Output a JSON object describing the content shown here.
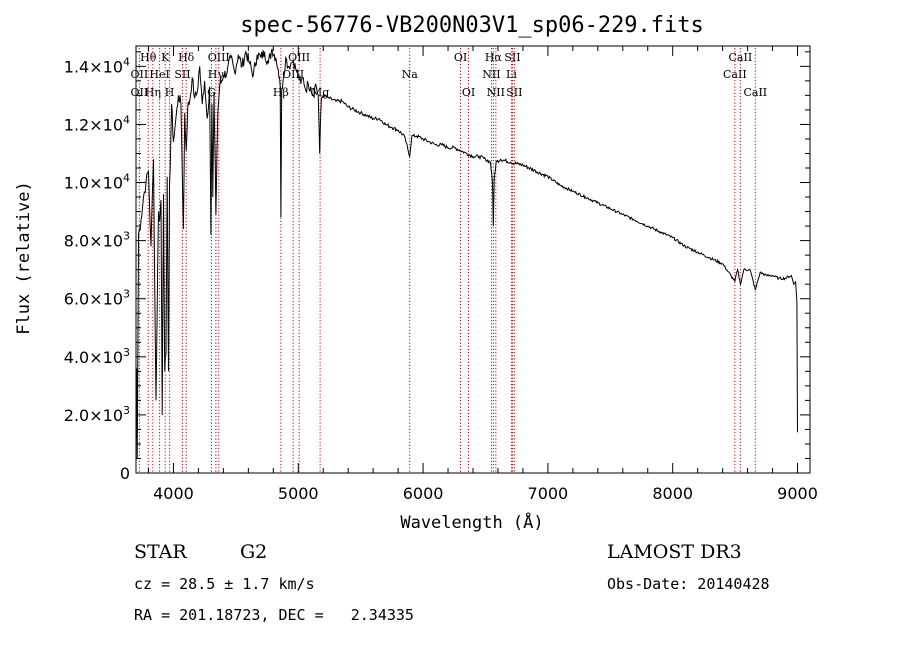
{
  "chart_data": {
    "type": "line",
    "title": "spec-56776-VB200N03V1_sp06-229.fits",
    "xlabel": "Wavelength (Å)",
    "ylabel": "Flux (relative)",
    "xlim": [
      3700,
      9100
    ],
    "ylim": [
      0,
      14700
    ],
    "x_ticks": [
      {
        "value": 4000,
        "label": "4000"
      },
      {
        "value": 5000,
        "label": "5000"
      },
      {
        "value": 6000,
        "label": "6000"
      },
      {
        "value": 7000,
        "label": "7000"
      },
      {
        "value": 8000,
        "label": "8000"
      },
      {
        "value": 9000,
        "label": "9000"
      }
    ],
    "y_ticks": [
      {
        "value": 0,
        "mant": "0",
        "exp": ""
      },
      {
        "value": 2000,
        "mant": "2.0×10",
        "exp": "3"
      },
      {
        "value": 4000,
        "mant": "4.0×10",
        "exp": "3"
      },
      {
        "value": 6000,
        "mant": "6.0×10",
        "exp": "3"
      },
      {
        "value": 8000,
        "mant": "8.0×10",
        "exp": "3"
      },
      {
        "value": 10000,
        "mant": "1.0×10",
        "exp": "4"
      },
      {
        "value": 12000,
        "mant": "1.2×10",
        "exp": "4"
      },
      {
        "value": 14000,
        "mant": "1.4×10",
        "exp": "4"
      }
    ],
    "series": [
      {
        "name": "flux",
        "color": "#000000",
        "x": [
          3700,
          3702,
          3706,
          3710,
          3720,
          3740,
          3760,
          3780,
          3800,
          3820,
          3840,
          3860,
          3880,
          3890,
          3900,
          3910,
          3920,
          3930,
          3940,
          3950,
          3960,
          3968,
          3975,
          3985,
          4000,
          4020,
          4040,
          4060,
          4080,
          4090,
          4102,
          4115,
          4130,
          4150,
          4170,
          4190,
          4210,
          4230,
          4250,
          4270,
          4290,
          4300,
          4308,
          4315,
          4325,
          4340,
          4355,
          4370,
          4400,
          4430,
          4460,
          4490,
          4520,
          4550,
          4580,
          4610,
          4640,
          4670,
          4700,
          4730,
          4760,
          4790,
          4820,
          4840,
          4855,
          4861,
          4867,
          4880,
          4900,
          4920,
          4940,
          4960,
          4980,
          5000,
          5020,
          5040,
          5060,
          5080,
          5100,
          5120,
          5140,
          5160,
          5172,
          5185,
          5200,
          5250,
          5300,
          5350,
          5400,
          5450,
          5500,
          5550,
          5600,
          5650,
          5700,
          5750,
          5800,
          5850,
          5893,
          5910,
          5950,
          6000,
          6050,
          6100,
          6150,
          6200,
          6250,
          6300,
          6350,
          6400,
          6450,
          6500,
          6540,
          6556,
          6563,
          6570,
          6585,
          6620,
          6700,
          6800,
          6900,
          7000,
          7100,
          7200,
          7300,
          7400,
          7500,
          7600,
          7700,
          7800,
          7900,
          8000,
          8100,
          8200,
          8300,
          8400,
          8498,
          8520,
          8542,
          8570,
          8620,
          8662,
          8700,
          8750,
          8800,
          8850,
          8900,
          8950,
          8970,
          8985,
          8995,
          9000
        ],
        "y": [
          3500,
          1200,
          3600,
          500,
          8200,
          8700,
          9500,
          10000,
          10400,
          7800,
          10800,
          2500,
          9000,
          8700,
          9400,
          2000,
          9600,
          3500,
          4100,
          10200,
          3500,
          9900,
          10600,
          12700,
          11400,
          12200,
          13000,
          12700,
          8400,
          12400,
          11100,
          12600,
          12800,
          13600,
          12900,
          13100,
          14000,
          12700,
          13500,
          12200,
          13300,
          8200,
          12700,
          9500,
          13100,
          8900,
          12400,
          13300,
          13700,
          13800,
          14300,
          13800,
          14400,
          14000,
          14500,
          14100,
          13700,
          14400,
          14300,
          14500,
          14100,
          14600,
          14300,
          13900,
          13300,
          8800,
          13200,
          13600,
          14300,
          14000,
          14100,
          14200,
          13900,
          13700,
          13400,
          13600,
          13200,
          13400,
          13300,
          13000,
          13400,
          13000,
          11000,
          12900,
          13000,
          12900,
          12800,
          12800,
          12600,
          12500,
          12400,
          12300,
          12200,
          12200,
          12000,
          11900,
          11800,
          11600,
          10900,
          11600,
          11600,
          11500,
          11400,
          11300,
          11300,
          11200,
          11200,
          11100,
          11000,
          10900,
          10900,
          10800,
          10700,
          10000,
          8500,
          10100,
          10700,
          10800,
          10700,
          10600,
          10400,
          10200,
          9900,
          9700,
          9500,
          9300,
          9100,
          8900,
          8700,
          8500,
          8300,
          8100,
          7800,
          7600,
          7400,
          7200,
          6600,
          7000,
          6500,
          7000,
          7000,
          6300,
          6900,
          6800,
          6800,
          6700,
          6700,
          6800,
          6500,
          6600,
          5900,
          1400
        ]
      }
    ],
    "spectral_lines": [
      {
        "label": "Hθ",
        "wave": 3798,
        "row": 0
      },
      {
        "label": "OII",
        "wave": 3727,
        "row": 1
      },
      {
        "label": "OII",
        "wave": 3727,
        "row": 2
      },
      {
        "label": "Hη",
        "wave": 3835,
        "row": 2
      },
      {
        "label": "HeI",
        "wave": 3889,
        "row": 1
      },
      {
        "label": "K",
        "wave": 3934,
        "row": 0
      },
      {
        "label": "H",
        "wave": 3969,
        "row": 2
      },
      {
        "label": "SII",
        "wave": 4072,
        "row": 1
      },
      {
        "label": "Hδ",
        "wave": 4102,
        "row": 0
      },
      {
        "label": "OIII",
        "wave": 4363,
        "row": 0
      },
      {
        "label": "Hγ",
        "wave": 4340,
        "row": 1
      },
      {
        "label": "G",
        "wave": 4305,
        "row": 2
      },
      {
        "label": "Hβ",
        "wave": 4861,
        "row": 2
      },
      {
        "label": "OIII",
        "wave": 5007,
        "row": 0
      },
      {
        "label": "OIII",
        "wave": 4959,
        "row": 1
      },
      {
        "label": "Mg",
        "wave": 5175,
        "row": 2
      },
      {
        "label": "Na",
        "wave": 5893,
        "row": 1
      },
      {
        "label": "OI",
        "wave": 6300,
        "row": 0
      },
      {
        "label": "OI",
        "wave": 6364,
        "row": 2
      },
      {
        "label": "Hα",
        "wave": 6563,
        "row": 0
      },
      {
        "label": "NII",
        "wave": 6548,
        "row": 1
      },
      {
        "label": "NII",
        "wave": 6583,
        "row": 2
      },
      {
        "label": "SII",
        "wave": 6716,
        "row": 0
      },
      {
        "label": "Li",
        "wave": 6708,
        "row": 1
      },
      {
        "label": "SII",
        "wave": 6731,
        "row": 2
      },
      {
        "label": "CaII",
        "wave": 8542,
        "row": 0
      },
      {
        "label": "CaII",
        "wave": 8498,
        "row": 1
      },
      {
        "label": "CaII",
        "wave": 8662,
        "row": 2
      }
    ],
    "line_color": "#cc0000"
  },
  "info": {
    "object_class": "STAR",
    "subclass": "G2",
    "survey": "LAMOST DR3",
    "redshift": "cz = 28.5 ± 1.7 km/s",
    "obs_date": "Obs-Date: 20140428",
    "coords": "RA = 201.18723, DEC =   2.34335"
  }
}
